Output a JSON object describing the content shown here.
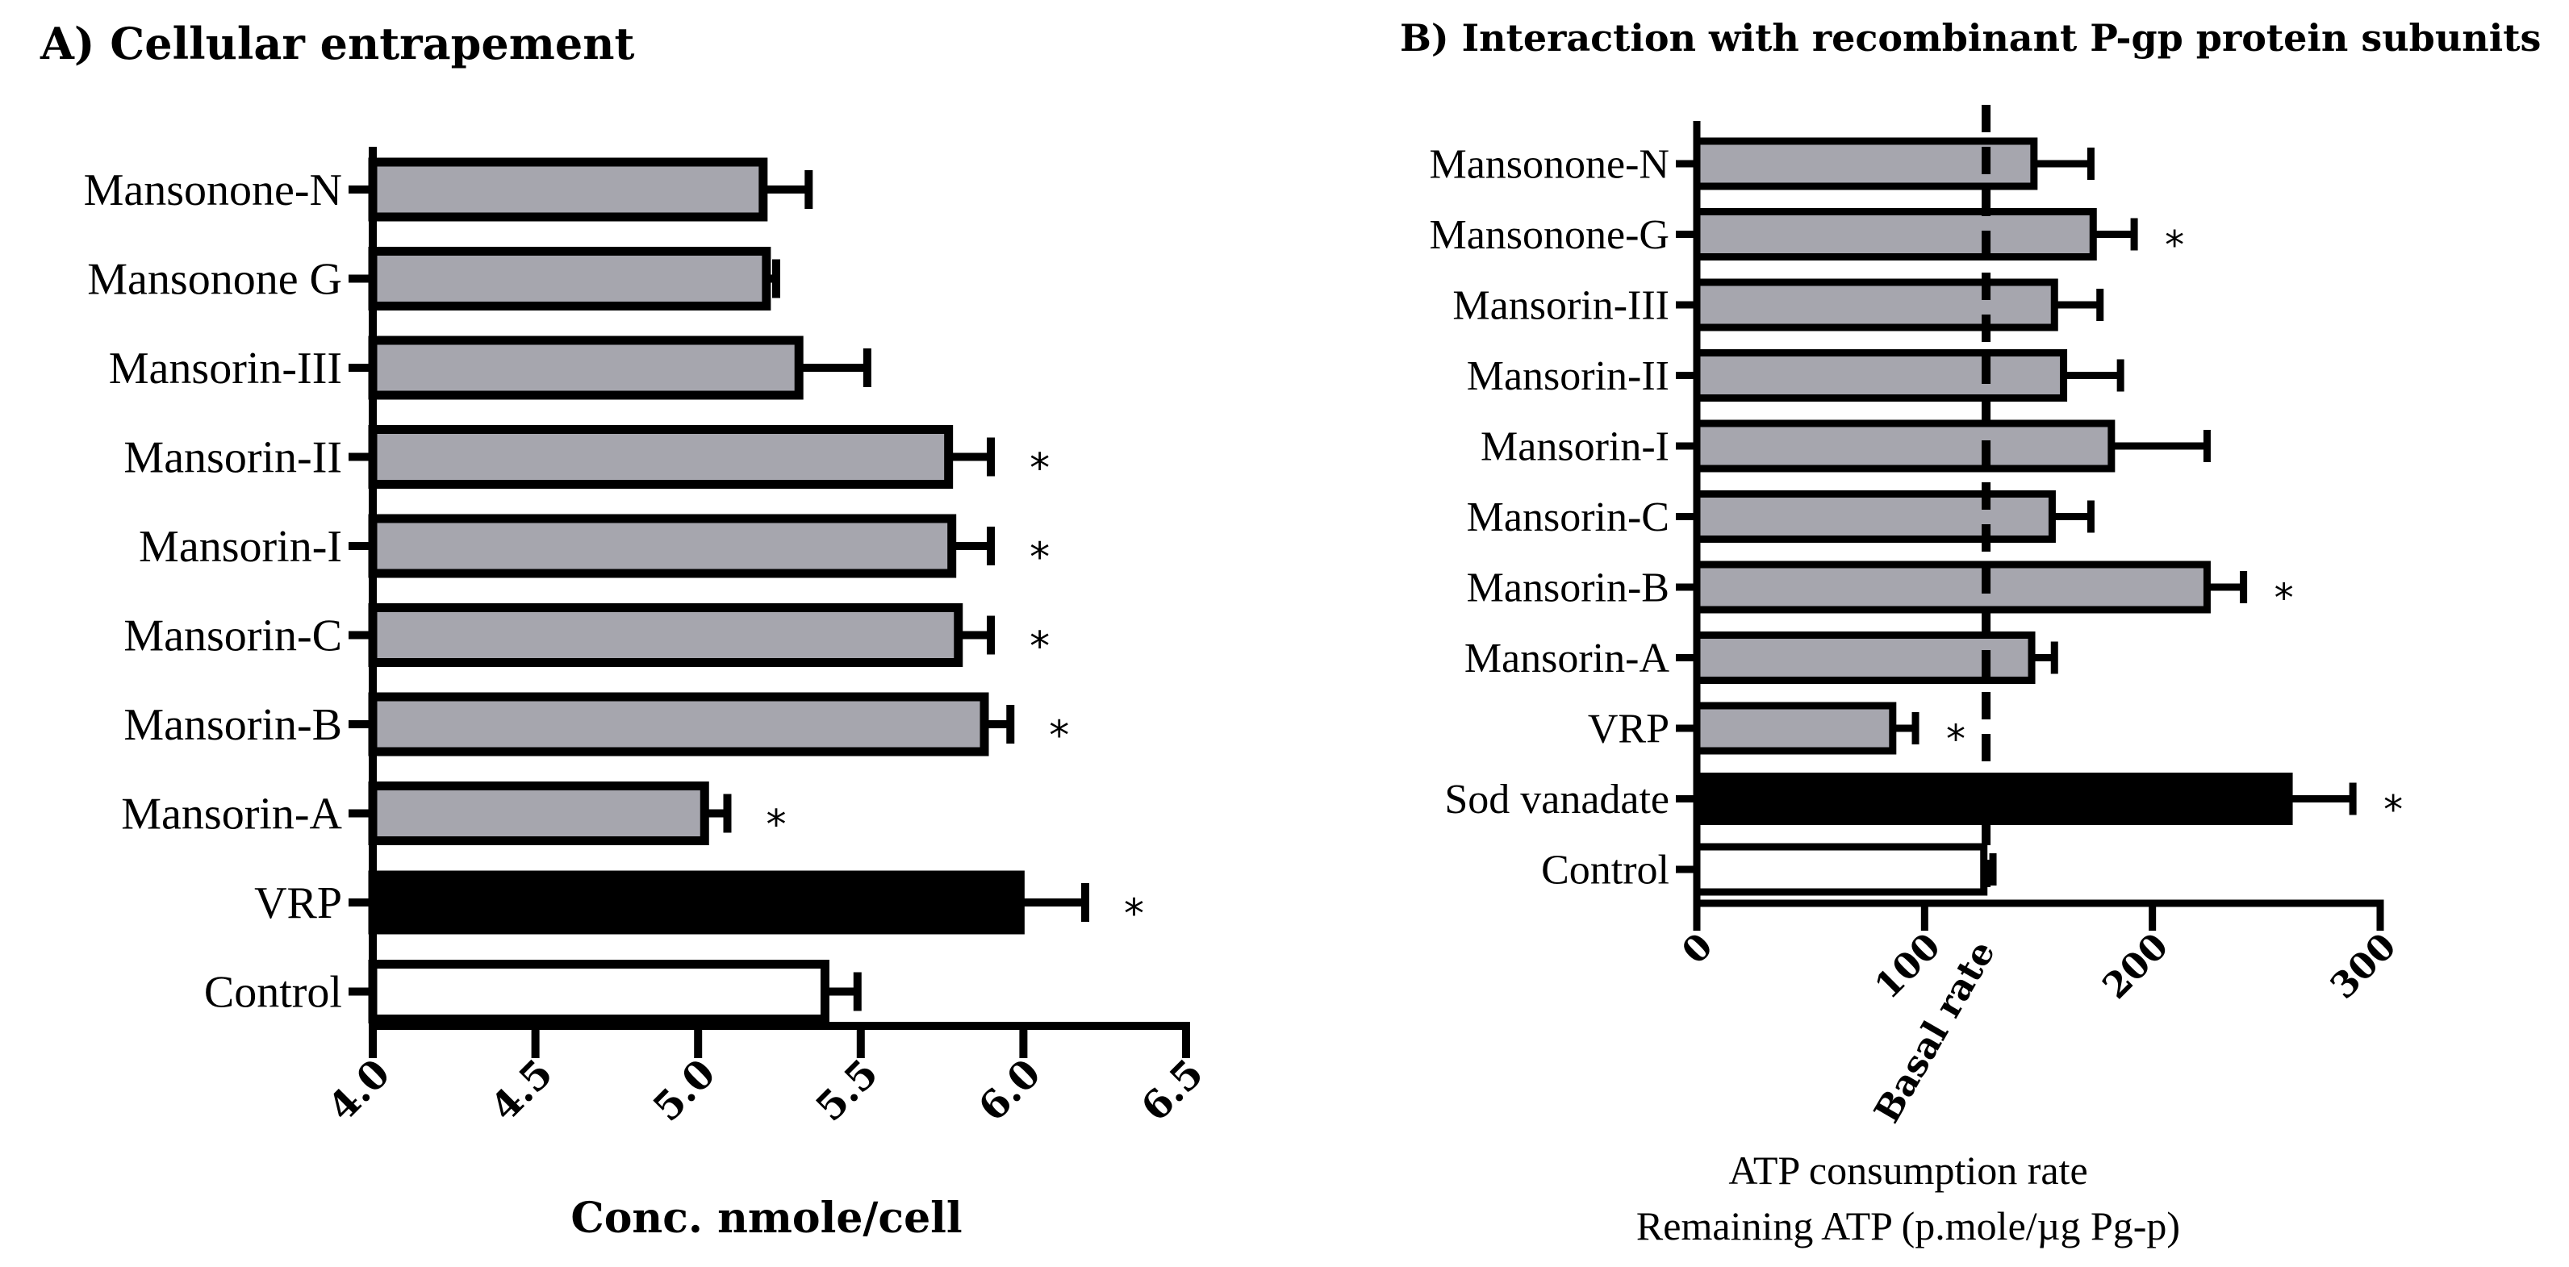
{
  "chart_data": [
    {
      "type": "bar",
      "orientation": "horizontal",
      "title": "A) Cellular entrapement",
      "xlabel": "Conc. nmole/cell",
      "ylabel": "",
      "xlim": [
        4.0,
        6.5
      ],
      "xticks": [
        "4.0",
        "4.5",
        "5.0",
        "5.5",
        "6.0",
        "6.5"
      ],
      "categories": [
        "Mansonone-N",
        "Mansonone G",
        "Mansorin-III",
        "Mansorin-II",
        "Mansorin-I",
        "Mansorin-C",
        "Mansorin-B",
        "Mansorin-A",
        "VRP",
        "Control"
      ],
      "values": [
        5.2,
        5.21,
        5.31,
        5.77,
        5.78,
        5.8,
        5.88,
        5.02,
        5.99,
        5.39
      ],
      "errors": [
        0.14,
        0.03,
        0.21,
        0.13,
        0.12,
        0.1,
        0.08,
        0.07,
        0.2,
        0.1
      ],
      "fills": [
        "#a6a6ae",
        "#a6a6ae",
        "#a6a6ae",
        "#a6a6ae",
        "#a6a6ae",
        "#a6a6ae",
        "#a6a6ae",
        "#a6a6ae",
        "#000000",
        "#ffffff"
      ],
      "significance": [
        "",
        "",
        "",
        "*",
        "*",
        "*",
        "*",
        "*",
        "*",
        ""
      ]
    },
    {
      "type": "bar",
      "orientation": "horizontal",
      "title": "B) Interaction with recombinant P-gp protein subunits",
      "xlabel_lines": [
        "ATP consumption rate",
        "Remaining ATP (p.mole/µg Pg-p)"
      ],
      "xlim": [
        0,
        300
      ],
      "xticks": [
        "0",
        "100",
        "200",
        "300"
      ],
      "reference_line": {
        "value": 127,
        "label": "Basal rate"
      },
      "categories": [
        "Mansonone-N",
        "Mansonone-G",
        "Mansorin-III",
        "Mansorin-II",
        "Mansorin-I",
        "Mansorin-C",
        "Mansorin-B",
        "Mansorin-A",
        "VRP",
        "Sod vanadate",
        "Control"
      ],
      "values": [
        148,
        174,
        157,
        161,
        182,
        156,
        224,
        147,
        86,
        260,
        126
      ],
      "errors": [
        25,
        18,
        20,
        25,
        42,
        17,
        16,
        10,
        10,
        28,
        4
      ],
      "fills": [
        "#a6a6ae",
        "#a6a6ae",
        "#a6a6ae",
        "#a6a6ae",
        "#a6a6ae",
        "#a6a6ae",
        "#a6a6ae",
        "#a6a6ae",
        "#a6a6ae",
        "#000000",
        "#ffffff"
      ],
      "significance": [
        "",
        "*",
        "",
        "",
        "",
        "",
        "*",
        "",
        "*",
        "*",
        ""
      ]
    }
  ]
}
